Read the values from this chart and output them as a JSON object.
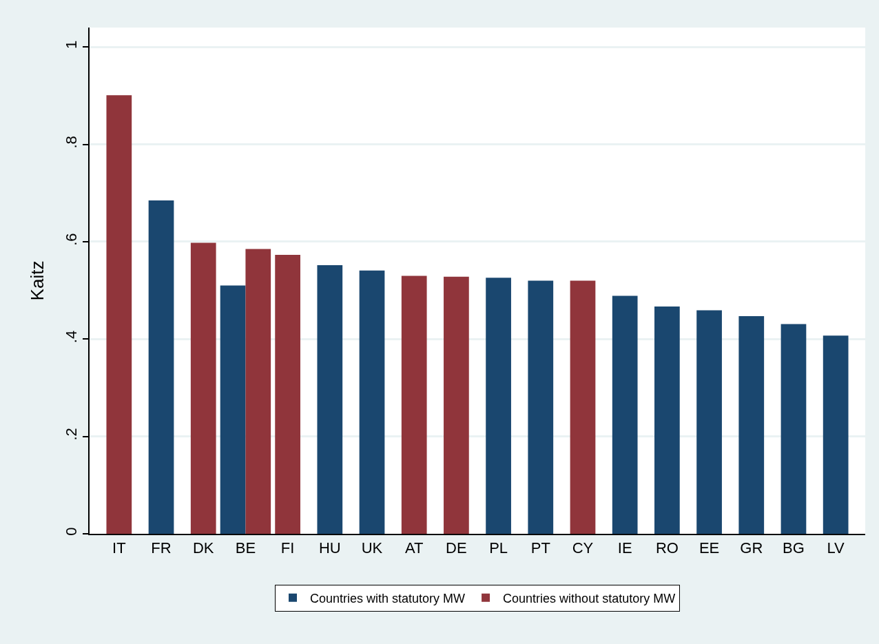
{
  "chart_data": {
    "type": "bar",
    "ylabel": "Kaitz",
    "categories": [
      "IT",
      "FR",
      "DK",
      "BE",
      "FI",
      "HU",
      "UK",
      "AT",
      "DE",
      "PL",
      "PT",
      "CY",
      "IE",
      "RO",
      "EE",
      "GR",
      "BG",
      "LV"
    ],
    "series": [
      {
        "name": "Countries with statutory MW",
        "color": "#1a476f",
        "values": [
          null,
          0.685,
          null,
          0.51,
          null,
          0.552,
          0.541,
          null,
          null,
          0.526,
          0.52,
          null,
          0.489,
          0.467,
          0.459,
          0.447,
          0.431,
          0.407
        ]
      },
      {
        "name": "Countries without statutory MW",
        "color": "#90353b",
        "values": [
          0.901,
          null,
          0.598,
          0.585,
          0.573,
          null,
          null,
          0.53,
          0.528,
          null,
          null,
          0.52,
          null,
          null,
          null,
          null,
          null,
          null
        ]
      }
    ],
    "ylim": [
      0,
      1.04
    ],
    "yticks": [
      0,
      {
        "value": 0.2,
        "label": ".2"
      },
      {
        "value": 0.4,
        "label": ".4"
      },
      {
        "value": 0.6,
        "label": ".6"
      },
      {
        "value": 0.8,
        "label": ".8"
      },
      1
    ],
    "grid": "y",
    "legend": "bottom"
  }
}
